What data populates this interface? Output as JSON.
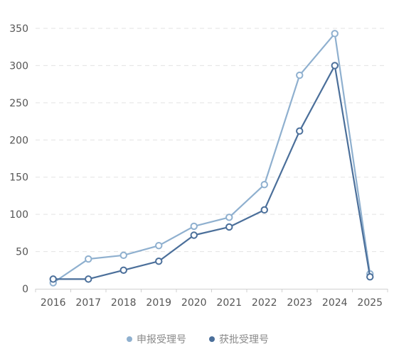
{
  "chart_data": {
    "type": "line",
    "title": "",
    "xlabel": "",
    "ylabel": "",
    "categories": [
      "2016",
      "2017",
      "2018",
      "2019",
      "2020",
      "2021",
      "2022",
      "2023",
      "2024",
      "2025"
    ],
    "ylim": [
      0,
      350
    ],
    "yticks": [
      0,
      50,
      100,
      150,
      200,
      250,
      300,
      350
    ],
    "grid": true,
    "legend_position": "bottom",
    "series": [
      {
        "name": "申报受理号",
        "color": "#8fb0cf",
        "values": [
          8,
          40,
          45,
          58,
          84,
          96,
          140,
          287,
          343,
          20
        ]
      },
      {
        "name": "获批受理号",
        "color": "#4b6f9a",
        "values": [
          13,
          13,
          25,
          37,
          72,
          83,
          106,
          212,
          300,
          16
        ]
      }
    ]
  }
}
